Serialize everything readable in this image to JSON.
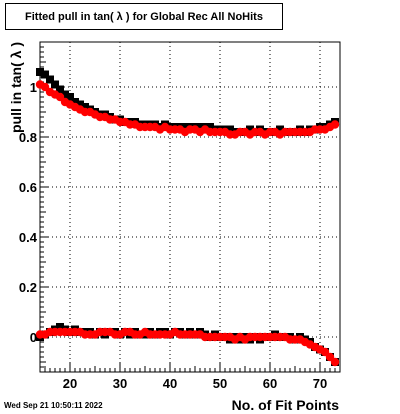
{
  "chart_data": {
    "type": "scatter",
    "title": "Fitted pull in tan( λ ) for Global Rec All NoHits",
    "xlabel": "No. of Fit Points",
    "ylabel": "pull in tan( λ )",
    "xlim": [
      14,
      74
    ],
    "ylim": [
      -0.14,
      1.18
    ],
    "x_ticks": [
      20,
      30,
      40,
      50,
      60,
      70
    ],
    "x_tick_labels": [
      "20",
      "30",
      "40",
      "50",
      "60",
      "70"
    ],
    "y_ticks": [
      0,
      0.2,
      0.4,
      0.6,
      0.8,
      1
    ],
    "y_tick_labels": [
      "0",
      "0.2",
      "0.4",
      "0.6",
      "0.8",
      "1"
    ],
    "grid": true,
    "series": [
      {
        "color": "#000000",
        "x": [
          14,
          15,
          16,
          17,
          18,
          19,
          20,
          21,
          22,
          23,
          24,
          25,
          26,
          27,
          28,
          29,
          30,
          31,
          32,
          33,
          34,
          35,
          36,
          37,
          38,
          39,
          40,
          41,
          42,
          43,
          44,
          45,
          46,
          47,
          48,
          49,
          50,
          51,
          52,
          53,
          54,
          55,
          56,
          57,
          58,
          59,
          60,
          61,
          62,
          63,
          64,
          65,
          66,
          67,
          68,
          69,
          70,
          71,
          72,
          73
        ],
        "values": [
          1.06,
          1.05,
          1.03,
          1.01,
          0.99,
          0.97,
          0.96,
          0.94,
          0.93,
          0.92,
          0.91,
          0.9,
          0.89,
          0.89,
          0.88,
          0.87,
          0.87,
          0.86,
          0.86,
          0.86,
          0.85,
          0.85,
          0.85,
          0.85,
          0.84,
          0.85,
          0.84,
          0.84,
          0.84,
          0.84,
          0.84,
          0.84,
          0.84,
          0.84,
          0.84,
          0.83,
          0.83,
          0.83,
          0.83,
          0.82,
          0.82,
          0.82,
          0.83,
          0.82,
          0.83,
          0.82,
          0.82,
          0.82,
          0.83,
          0.82,
          0.82,
          0.82,
          0.83,
          0.82,
          0.83,
          0.83,
          0.84,
          0.84,
          0.85,
          0.86
        ]
      },
      {
        "color": "#ff0000",
        "x": [
          14,
          15,
          16,
          17,
          18,
          19,
          20,
          21,
          22,
          23,
          24,
          25,
          26,
          27,
          28,
          29,
          30,
          31,
          32,
          33,
          34,
          35,
          36,
          37,
          38,
          39,
          40,
          41,
          42,
          43,
          44,
          45,
          46,
          47,
          48,
          49,
          50,
          51,
          52,
          53,
          54,
          55,
          56,
          57,
          58,
          59,
          60,
          61,
          62,
          63,
          64,
          65,
          66,
          67,
          68,
          69,
          70,
          71,
          72,
          73
        ],
        "values": [
          1.01,
          1.0,
          0.98,
          0.97,
          0.96,
          0.94,
          0.93,
          0.92,
          0.91,
          0.9,
          0.9,
          0.89,
          0.88,
          0.88,
          0.87,
          0.87,
          0.86,
          0.86,
          0.85,
          0.85,
          0.84,
          0.84,
          0.84,
          0.84,
          0.83,
          0.84,
          0.83,
          0.83,
          0.83,
          0.82,
          0.83,
          0.83,
          0.82,
          0.83,
          0.82,
          0.82,
          0.82,
          0.82,
          0.81,
          0.81,
          0.82,
          0.82,
          0.81,
          0.82,
          0.82,
          0.81,
          0.82,
          0.82,
          0.81,
          0.82,
          0.82,
          0.82,
          0.82,
          0.82,
          0.82,
          0.83,
          0.83,
          0.83,
          0.84,
          0.85
        ]
      },
      {
        "color": "#000000",
        "x": [
          14,
          15,
          16,
          17,
          18,
          19,
          20,
          21,
          22,
          23,
          24,
          25,
          26,
          27,
          28,
          29,
          30,
          31,
          32,
          33,
          34,
          35,
          36,
          37,
          38,
          39,
          40,
          41,
          42,
          43,
          44,
          45,
          46,
          47,
          48,
          49,
          50,
          51,
          52,
          53,
          54,
          55,
          56,
          57,
          58,
          59,
          60,
          61,
          62,
          63,
          64,
          65,
          66,
          67,
          68,
          69,
          70,
          71,
          72,
          73
        ],
        "values": [
          0.0,
          0.01,
          0.02,
          0.03,
          0.04,
          0.03,
          0.02,
          0.03,
          0.02,
          0.02,
          0.02,
          0.01,
          0.02,
          0.01,
          0.02,
          0.02,
          0.01,
          0.02,
          0.01,
          0.02,
          0.01,
          0.01,
          0.02,
          0.01,
          0.02,
          0.02,
          0.01,
          0.02,
          0.02,
          0.01,
          0.02,
          0.01,
          0.02,
          0.01,
          0.0,
          0.01,
          0.0,
          0.0,
          -0.01,
          0.0,
          -0.01,
          0.0,
          -0.01,
          0.0,
          -0.01,
          0.0,
          0.0,
          0.01,
          0.0,
          0.0,
          0.0,
          -0.01,
          0.0,
          -0.01,
          -0.02,
          -0.04,
          -0.05,
          -0.06,
          -0.08,
          -0.1
        ]
      },
      {
        "color": "#ff0000",
        "x": [
          14,
          15,
          16,
          17,
          18,
          19,
          20,
          21,
          22,
          23,
          24,
          25,
          26,
          27,
          28,
          29,
          30,
          31,
          32,
          33,
          34,
          35,
          36,
          37,
          38,
          39,
          40,
          41,
          42,
          43,
          44,
          45,
          46,
          47,
          48,
          49,
          50,
          51,
          52,
          53,
          54,
          55,
          56,
          57,
          58,
          59,
          60,
          61,
          62,
          63,
          64,
          65,
          66,
          67,
          68,
          69,
          70,
          71,
          72,
          73
        ],
        "values": [
          0.01,
          0.01,
          0.02,
          0.02,
          0.02,
          0.02,
          0.02,
          0.02,
          0.02,
          0.01,
          0.01,
          0.01,
          0.02,
          0.02,
          0.02,
          0.01,
          0.01,
          0.02,
          0.02,
          0.01,
          0.01,
          0.02,
          0.01,
          0.01,
          0.01,
          0.01,
          0.01,
          0.02,
          0.01,
          0.01,
          0.01,
          0.01,
          0.01,
          0.0,
          0.0,
          0.0,
          0.0,
          0.0,
          0.0,
          -0.01,
          0.0,
          -0.01,
          0.0,
          0.0,
          0.0,
          0.0,
          0.0,
          0.0,
          0.0,
          0.0,
          -0.01,
          -0.01,
          -0.01,
          -0.02,
          -0.03,
          -0.04,
          -0.05,
          -0.06,
          -0.08,
          -0.1
        ]
      }
    ]
  },
  "footer": {
    "timestamp": "Wed Sep 21 10:50:11 2022"
  }
}
